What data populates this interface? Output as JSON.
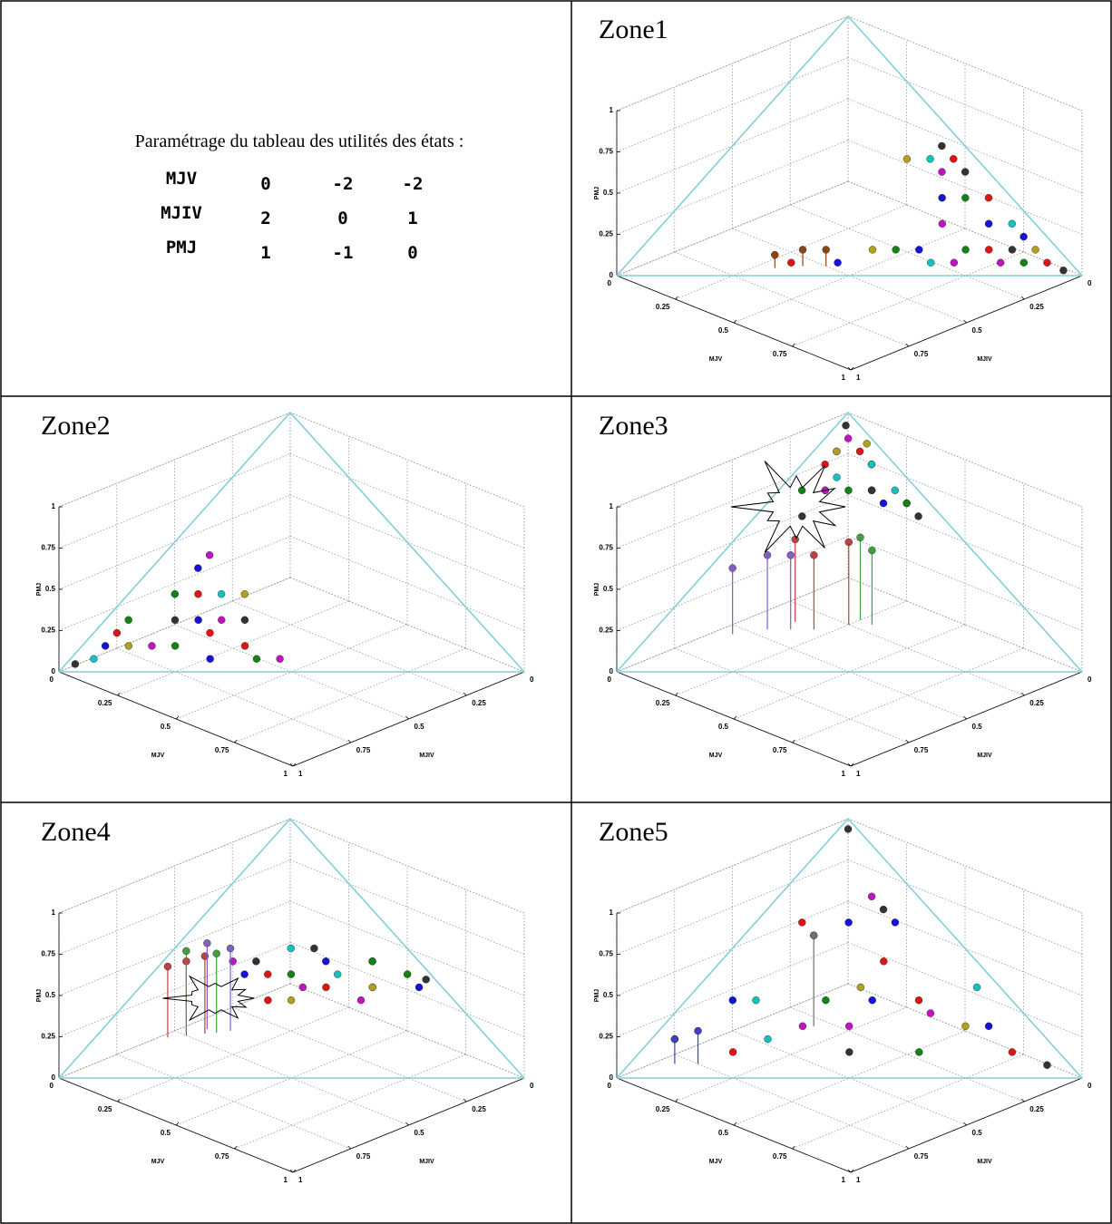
{
  "table": {
    "caption": "Paramétrage du tableau des utilités des états :",
    "rows": [
      {
        "label": "MJV",
        "values": [
          0,
          -2,
          -2
        ]
      },
      {
        "label": "MJIV",
        "values": [
          2,
          0,
          1
        ]
      },
      {
        "label": "PMJ",
        "values": [
          1,
          -1,
          0
        ]
      }
    ]
  },
  "chart_data": [
    {
      "type": "scatter3d",
      "title": "Zone1",
      "xlabel": "MJV",
      "ylabel": "MJIV",
      "zlabel": "PMJ",
      "xlim": [
        0,
        1
      ],
      "ylim": [
        0,
        1
      ],
      "zlim": [
        0,
        1
      ],
      "xticks": [
        0,
        0.25,
        0.5,
        0.75,
        1
      ],
      "yticks": [
        0,
        0.25,
        0.5,
        0.75,
        1
      ],
      "zticks": [
        0,
        0.25,
        0.5,
        0.75,
        1
      ],
      "grid": true,
      "simplex_color": "#7fd0d8",
      "series": [
        {
          "color": "#1414d8",
          "x": [
            0.55,
            0.7,
            0.8,
            0.6,
            0.45
          ],
          "y": [
            0.15,
            0.1,
            0.05,
            0.3,
            0.5
          ],
          "z": [
            0.3,
            0.2,
            0.15,
            0.1,
            0.05
          ]
        },
        {
          "color": "#e01414",
          "x": [
            0.5,
            0.75,
            0.9,
            0.65,
            0.35
          ],
          "y": [
            0.05,
            0.15,
            0.05,
            0.05,
            0.6
          ],
          "z": [
            0.45,
            0.1,
            0.05,
            0.3,
            0.05
          ]
        },
        {
          "color": "#148214",
          "x": [
            0.6,
            0.85,
            0.55,
            0.7
          ],
          "y": [
            0.1,
            0.1,
            0.35,
            0.2
          ],
          "z": [
            0.3,
            0.05,
            0.1,
            0.1
          ]
        },
        {
          "color": "#c014c0",
          "x": [
            0.5,
            0.7,
            0.8,
            0.6
          ],
          "y": [
            0.1,
            0.25,
            0.15,
            0.2
          ],
          "z": [
            0.4,
            0.05,
            0.05,
            0.2
          ]
        },
        {
          "color": "#14c0c0",
          "x": [
            0.45,
            0.75,
            0.65
          ],
          "y": [
            0.1,
            0.05,
            0.3
          ],
          "z": [
            0.45,
            0.2,
            0.05
          ]
        },
        {
          "color": "#333333",
          "x": [
            0.45,
            0.55,
            0.95,
            0.8
          ],
          "y": [
            0.05,
            0.05,
            0.03,
            0.1
          ],
          "z": [
            0.5,
            0.4,
            0.02,
            0.1
          ]
        },
        {
          "color": "#b0a020",
          "x": [
            0.4,
            0.85,
            0.5
          ],
          "y": [
            0.15,
            0.05,
            0.4
          ],
          "z": [
            0.45,
            0.1,
            0.1
          ]
        },
        {
          "color": "#8b4513",
          "stems": true,
          "x": [
            0.3,
            0.35,
            0.4
          ],
          "y": [
            0.62,
            0.55,
            0.5
          ],
          "z": [
            0.08,
            0.1,
            0.1
          ]
        }
      ]
    },
    {
      "type": "scatter3d",
      "title": "Zone2",
      "xlabel": "MJV",
      "ylabel": "MJIV",
      "zlabel": "PMJ",
      "xlim": [
        0,
        1
      ],
      "ylim": [
        0,
        1
      ],
      "zlim": [
        0,
        1
      ],
      "xticks": [
        0,
        0.25,
        0.5,
        0.75,
        1
      ],
      "yticks": [
        0,
        0.25,
        0.5,
        0.75,
        1
      ],
      "zticks": [
        0,
        0.25,
        0.5,
        0.75,
        1
      ],
      "grid": true,
      "simplex_color": "#7fd0d8",
      "series": [
        {
          "color": "#1414d8",
          "x": [
            0.1,
            0.2,
            0.05,
            0.3
          ],
          "y": [
            0.5,
            0.6,
            0.85,
            0.65
          ],
          "z": [
            0.4,
            0.2,
            0.1,
            0.05
          ]
        },
        {
          "color": "#e01414",
          "x": [
            0.15,
            0.05,
            0.25,
            0.35
          ],
          "y": [
            0.55,
            0.8,
            0.6,
            0.55
          ],
          "z": [
            0.3,
            0.15,
            0.15,
            0.1
          ]
        },
        {
          "color": "#148214",
          "x": [
            0.05,
            0.2,
            0.1,
            0.4
          ],
          "y": [
            0.75,
            0.7,
            0.6,
            0.55
          ],
          "z": [
            0.2,
            0.1,
            0.3,
            0.05
          ]
        },
        {
          "color": "#c014c0",
          "x": [
            0.1,
            0.25,
            0.15,
            0.45
          ],
          "y": [
            0.45,
            0.55,
            0.75,
            0.5
          ],
          "z": [
            0.45,
            0.2,
            0.1,
            0.05
          ]
        },
        {
          "color": "#14c0c0",
          "x": [
            0.2,
            0.05
          ],
          "y": [
            0.5,
            0.9
          ],
          "z": [
            0.3,
            0.05
          ]
        },
        {
          "color": "#333333",
          "x": [
            0.15,
            0.3,
            0.02
          ],
          "y": [
            0.65,
            0.5,
            0.95
          ],
          "z": [
            0.2,
            0.2,
            0.03
          ]
        },
        {
          "color": "#b0a020",
          "x": [
            0.25,
            0.1
          ],
          "y": [
            0.45,
            0.8
          ],
          "z": [
            0.3,
            0.1
          ]
        }
      ]
    },
    {
      "type": "scatter3d",
      "title": "Zone3",
      "xlabel": "MJV",
      "ylabel": "MJIV",
      "zlabel": "PMJ",
      "xlim": [
        0,
        1
      ],
      "ylim": [
        0,
        1
      ],
      "zlim": [
        0,
        1
      ],
      "xticks": [
        0,
        0.25,
        0.5,
        0.75,
        1
      ],
      "yticks": [
        0,
        0.25,
        0.5,
        0.75,
        1
      ],
      "zticks": [
        0,
        0.25,
        0.5,
        0.75,
        1
      ],
      "grid": true,
      "simplex_color": "#7fd0d8",
      "series": [
        {
          "color": "#1414d8",
          "x": [
            0.05,
            0.15,
            0.1,
            0.25
          ],
          "y": [
            0.1,
            0.05,
            0.2,
            0.1
          ],
          "z": [
            0.85,
            0.8,
            0.7,
            0.65
          ]
        },
        {
          "color": "#e01414",
          "x": [
            0.1,
            0.2,
            0.05,
            0.3
          ],
          "y": [
            0.05,
            0.1,
            0.15,
            0.05
          ],
          "z": [
            0.85,
            0.7,
            0.8,
            0.65
          ]
        },
        {
          "color": "#148214",
          "x": [
            0.15,
            0.3,
            0.05
          ],
          "y": [
            0.15,
            0.05,
            0.25
          ],
          "z": [
            0.7,
            0.65,
            0.7
          ]
        },
        {
          "color": "#c014c0",
          "x": [
            0.05,
            0.2,
            0.1
          ],
          "y": [
            0.05,
            0.1,
            0.2
          ],
          "z": [
            0.9,
            0.7,
            0.7
          ]
        },
        {
          "color": "#14c0c0",
          "x": [
            0.15,
            0.1,
            0.25
          ],
          "y": [
            0.05,
            0.15,
            0.05
          ],
          "z": [
            0.8,
            0.75,
            0.7
          ]
        },
        {
          "color": "#333333",
          "x": [
            0.02,
            0.2,
            0.35,
            0.1
          ],
          "y": [
            0.03,
            0.1,
            0.05,
            0.3
          ],
          "z": [
            0.95,
            0.7,
            0.6,
            0.6
          ]
        },
        {
          "color": "#b0a020",
          "x": [
            0.1,
            0.05
          ],
          "y": [
            0.02,
            0.1
          ],
          "z": [
            0.88,
            0.85
          ]
        },
        {
          "color": "#8060c0",
          "stems": true,
          "x": [
            0.05,
            0.1,
            0.15
          ],
          "y": [
            0.55,
            0.45,
            0.4
          ],
          "z": [
            0.4,
            0.45,
            0.45
          ]
        },
        {
          "color": "#c04040",
          "stems": true,
          "x": [
            0.2,
            0.12,
            0.25
          ],
          "y": [
            0.35,
            0.35,
            0.25
          ],
          "z": [
            0.45,
            0.5,
            0.5
          ]
        },
        {
          "color": "#40a040",
          "stems": true,
          "x": [
            0.25,
            0.3
          ],
          "y": [
            0.2,
            0.2
          ],
          "z": [
            0.5,
            0.45
          ]
        }
      ]
    },
    {
      "type": "scatter3d",
      "title": "Zone4",
      "xlabel": "MJV",
      "ylabel": "MJIV",
      "zlabel": "PMJ",
      "xlim": [
        0,
        1
      ],
      "ylim": [
        0,
        1
      ],
      "zlim": [
        0,
        1
      ],
      "xticks": [
        0,
        0.25,
        0.5,
        0.75,
        1
      ],
      "yticks": [
        0,
        0.25,
        0.5,
        0.75,
        1
      ],
      "zticks": [
        0,
        0.25,
        0.5,
        0.75,
        1
      ],
      "grid": true,
      "simplex_color": "#7fd0d8",
      "series": [
        {
          "color": "#1414d8",
          "x": [
            0.2,
            0.35,
            0.45,
            0.6
          ],
          "y": [
            0.4,
            0.2,
            0.1,
            0.05
          ],
          "z": [
            0.4,
            0.45,
            0.45,
            0.35
          ]
        },
        {
          "color": "#e01414",
          "x": [
            0.25,
            0.4,
            0.5,
            0.3
          ],
          "y": [
            0.35,
            0.25,
            0.15,
            0.4
          ],
          "z": [
            0.4,
            0.35,
            0.35,
            0.3
          ]
        },
        {
          "color": "#148214",
          "x": [
            0.3,
            0.45,
            0.55
          ],
          "y": [
            0.3,
            0.1,
            0.05
          ],
          "z": [
            0.4,
            0.45,
            0.4
          ]
        },
        {
          "color": "#c014c0",
          "x": [
            0.15,
            0.35,
            0.5
          ],
          "y": [
            0.4,
            0.3,
            0.2
          ],
          "z": [
            0.45,
            0.35,
            0.3
          ]
        },
        {
          "color": "#14c0c0",
          "x": [
            0.25,
            0.4
          ],
          "y": [
            0.25,
            0.2
          ],
          "z": [
            0.5,
            0.4
          ]
        },
        {
          "color": "#333333",
          "x": [
            0.3,
            0.2,
            0.6
          ],
          "y": [
            0.2,
            0.35,
            0.02
          ],
          "z": [
            0.5,
            0.45,
            0.38
          ]
        },
        {
          "color": "#b0a020",
          "x": [
            0.35,
            0.5
          ],
          "y": [
            0.35,
            0.15
          ],
          "z": [
            0.3,
            0.35
          ]
        },
        {
          "color": "#c04040",
          "stems": true,
          "x": [
            0.02,
            0.05,
            0.08
          ],
          "y": [
            0.55,
            0.5,
            0.45
          ],
          "z": [
            0.43,
            0.45,
            0.47
          ]
        },
        {
          "color": "#40a040",
          "stems": true,
          "x": [
            0.03,
            0.1
          ],
          "y": [
            0.48,
            0.42
          ],
          "z": [
            0.49,
            0.48
          ]
        },
        {
          "color": "#8060c0",
          "stems": true,
          "x": [
            0.06,
            0.12
          ],
          "y": [
            0.42,
            0.38
          ],
          "z": [
            0.52,
            0.5
          ]
        }
      ]
    },
    {
      "type": "scatter3d",
      "title": "Zone5",
      "xlabel": "MJV",
      "ylabel": "MJIV",
      "zlabel": "PMJ",
      "xlim": [
        0,
        1
      ],
      "ylim": [
        0,
        1
      ],
      "zlim": [
        0,
        1
      ],
      "xticks": [
        0,
        0.25,
        0.5,
        0.75,
        1
      ],
      "yticks": [
        0,
        0.25,
        0.5,
        0.75,
        1
      ],
      "zticks": [
        0,
        0.25,
        0.5,
        0.75,
        1
      ],
      "grid": true,
      "simplex_color": "#7fd0d8",
      "series": [
        {
          "color": "#1414d8",
          "x": [
            0.1,
            0.4,
            0.7,
            0.3,
            0.2
          ],
          "y": [
            0.6,
            0.3,
            0.1,
            0.1,
            0.2
          ],
          "z": [
            0.3,
            0.3,
            0.2,
            0.6,
            0.6
          ]
        },
        {
          "color": "#e01414",
          "x": [
            0.2,
            0.5,
            0.8,
            0.1,
            0.35
          ],
          "y": [
            0.7,
            0.2,
            0.1,
            0.3,
            0.2
          ],
          "z": [
            0.1,
            0.3,
            0.1,
            0.6,
            0.45
          ]
        },
        {
          "color": "#148214",
          "x": [
            0.05,
            0.6,
            0.3,
            0.15
          ],
          "y": [
            0.8,
            0.3,
            0.4,
            0.3
          ],
          "z": [
            0.15,
            0.1,
            0.3,
            0.55
          ]
        },
        {
          "color": "#c014c0",
          "x": [
            0.3,
            0.55,
            0.2,
            0.4
          ],
          "y": [
            0.5,
            0.2,
            0.1,
            0.4
          ],
          "z": [
            0.2,
            0.25,
            0.7,
            0.2
          ]
        },
        {
          "color": "#14c0c0",
          "x": [
            0.15,
            0.25,
            0.6
          ],
          "y": [
            0.55,
            0.6,
            0.05
          ],
          "z": [
            0.3,
            0.15,
            0.35
          ]
        },
        {
          "color": "#333333",
          "x": [
            0.02,
            0.45,
            0.9,
            0.25
          ],
          "y": [
            0.02,
            0.45,
            0.05,
            0.1
          ],
          "z": [
            0.96,
            0.1,
            0.05,
            0.65
          ]
        },
        {
          "color": "#b0a020",
          "x": [
            0.35,
            0.65
          ],
          "y": [
            0.3,
            0.15
          ],
          "z": [
            0.35,
            0.2
          ]
        },
        {
          "color": "#707070",
          "stems": true,
          "x": [
            0.15
          ],
          "y": [
            0.3
          ],
          "z": [
            0.55
          ]
        },
        {
          "color": "#4040c0",
          "stems": true,
          "x": [
            0.05,
            0.1
          ],
          "y": [
            0.8,
            0.75
          ],
          "z": [
            0.15,
            0.2
          ]
        }
      ]
    }
  ]
}
